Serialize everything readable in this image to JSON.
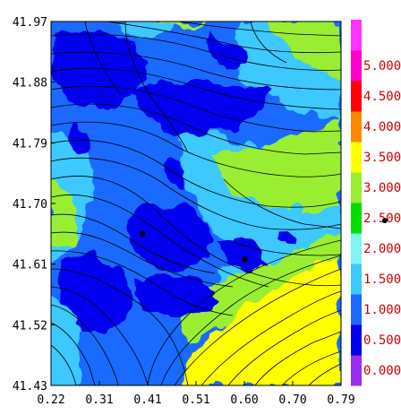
{
  "chart_data": {
    "type": "heatmap",
    "title": "",
    "xlabel": "",
    "ylabel": "",
    "x_ticks": [
      "0.22",
      "0.31",
      "0.41",
      "0.51",
      "0.60",
      "0.70",
      "0.79"
    ],
    "y_ticks": [
      "41.97",
      "41.88",
      "41.79",
      "41.70",
      "41.61",
      "41.52",
      "41.43"
    ],
    "xlim": [
      0.22,
      0.79
    ],
    "ylim": [
      41.43,
      41.97
    ],
    "overlay": "streamlines",
    "colorbar": {
      "labels": [
        "0.000",
        "0.500",
        "1.000",
        "1.500",
        "2.000",
        "2.500",
        "3.000",
        "3.500",
        "4.000",
        "4.500",
        "5.000"
      ],
      "colors": [
        "#9b2cf0",
        "#0000ee",
        "#1a6aff",
        "#3cc9ff",
        "#7ff5f5",
        "#00dd00",
        "#99ee33",
        "#ffff00",
        "#ff8800",
        "#ff0000",
        "#ff00cc",
        "#ff33ff"
      ]
    },
    "markers": [
      {
        "x": 0.4,
        "y": 41.655
      },
      {
        "x": 0.601,
        "y": 41.617
      }
    ]
  }
}
